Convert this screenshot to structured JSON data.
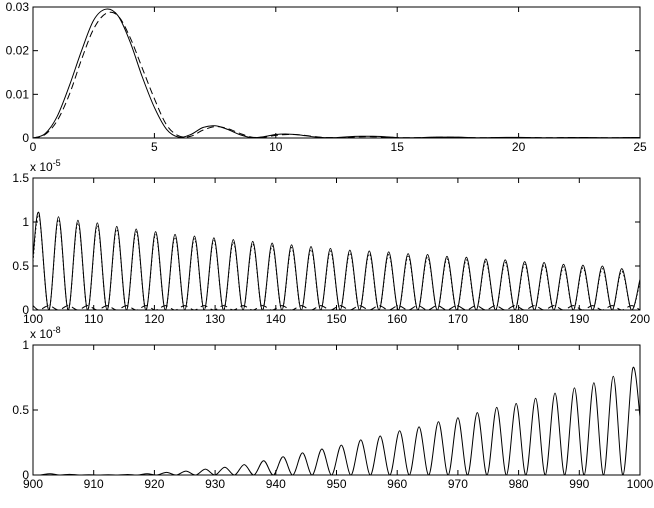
{
  "chart_data": [
    {
      "type": "line",
      "x": [
        0,
        0.5,
        1,
        1.5,
        2,
        2.5,
        3,
        3.5,
        4,
        4.5,
        5,
        5.5,
        6,
        6.5,
        7,
        7.5,
        8,
        8.5,
        9,
        9.5,
        10,
        10.5,
        11,
        11.5,
        12,
        12.5,
        13,
        13.5,
        14,
        14.5,
        15,
        15.5,
        16,
        16.5,
        17,
        17.5,
        18,
        18.5,
        19,
        19.5,
        20,
        20.5,
        21,
        21.5,
        22,
        22.5,
        23,
        23.5,
        24,
        24.5,
        25
      ],
      "series": [
        {
          "color": "#000000",
          "style": "solid",
          "values": [
            0,
            0.001,
            0.005,
            0.012,
            0.02,
            0.027,
            0.0295,
            0.028,
            0.022,
            0.014,
            0.007,
            0.002,
            0.0002,
            0.0008,
            0.0024,
            0.0028,
            0.002,
            0.0008,
            0.0001,
            0.0003,
            0.0008,
            0.0009,
            0.0007,
            0.0003,
            0.0001,
            0.0001,
            0.0003,
            0.0004,
            0.0004,
            0.0003,
            0.0001,
            5e-05,
            0.0001,
            0.0002,
            0.0002,
            0.0002,
            0.0001,
            5e-05,
            0.0001,
            0.00015,
            0.00015,
            0.0001,
            5e-05,
            5e-05,
            0.0001,
            0.0001,
            0.0001,
            5e-05,
            5e-05,
            0.0001,
            0.0001
          ]
        },
        {
          "color": "#000000",
          "style": "dashed",
          "values": [
            0,
            0.0008,
            0.004,
            0.01,
            0.018,
            0.025,
            0.0285,
            0.028,
            0.023,
            0.016,
            0.009,
            0.003,
            0.0005,
            0.0004,
            0.0018,
            0.0026,
            0.0022,
            0.0011,
            0.0002,
            0.0002,
            0.0006,
            0.0008,
            0.0007,
            0.0004,
            0.0001,
            0.0001,
            0.0002,
            0.0003,
            0.0003,
            0.0002,
            0.0001,
            5e-05,
            0.0001,
            0.00015,
            0.0002,
            0.00015,
            0.0001,
            5e-05,
            0.0001,
            0.0001,
            0.0001,
            0.0001,
            5e-05,
            5e-05,
            0.0001,
            0.0001,
            5e-05,
            5e-05,
            5e-05,
            0.0001,
            0.0001
          ]
        }
      ],
      "xlim": [
        0,
        25
      ],
      "xticks": [
        0,
        5,
        10,
        15,
        20,
        25
      ],
      "ylim": [
        0,
        0.03
      ],
      "yticks": [
        0,
        0.01,
        0.02,
        0.03
      ]
    },
    {
      "type": "line",
      "x": [
        100,
        101,
        102.6,
        104.2,
        105.8,
        107.4,
        109,
        110.6,
        112.2,
        113.8,
        115.4,
        117,
        118.6,
        120.2,
        121.8,
        123.4,
        125,
        126.6,
        128.2,
        129.8,
        131.4,
        133,
        134.6,
        136.2,
        137.8,
        139.4,
        141,
        142.6,
        144.2,
        145.8,
        147.4,
        149,
        150.6,
        152.2,
        153.8,
        155.4,
        157,
        158.6,
        160.2,
        161.8,
        163.4,
        165,
        166.6,
        168.2,
        169.8,
        171.4,
        173,
        174.6,
        176.2,
        177.8,
        179.4,
        181,
        182.6,
        184.2,
        185.8,
        187.4,
        189,
        190.6,
        192.2,
        193.8,
        195.4,
        197,
        198.6,
        200
      ],
      "series": [
        {
          "color": "#000000",
          "style": "solid",
          "values": [
            0.6,
            1.1,
            0,
            1.06,
            0,
            1.02,
            0,
            0.99,
            0,
            0.95,
            0,
            0.92,
            0,
            0.89,
            0,
            0.86,
            0,
            0.84,
            0,
            0.82,
            0,
            0.8,
            0,
            0.78,
            0,
            0.76,
            0,
            0.74,
            0,
            0.72,
            0,
            0.7,
            0,
            0.68,
            0,
            0.67,
            0,
            0.66,
            0,
            0.64,
            0,
            0.63,
            0,
            0.61,
            0,
            0.6,
            0,
            0.58,
            0,
            0.57,
            0,
            0.55,
            0,
            0.54,
            0,
            0.52,
            0,
            0.51,
            0,
            0.5,
            0,
            0.47,
            0,
            0.35
          ]
        },
        {
          "color": "#000000",
          "style": "dotted",
          "values": [
            0.55,
            1.07,
            0,
            1.03,
            0,
            0.99,
            0,
            0.96,
            0,
            0.92,
            0,
            0.89,
            0,
            0.86,
            0,
            0.83,
            0,
            0.81,
            0,
            0.79,
            0,
            0.77,
            0,
            0.75,
            0,
            0.73,
            0,
            0.71,
            0,
            0.69,
            0,
            0.67,
            0,
            0.65,
            0,
            0.64,
            0,
            0.63,
            0,
            0.61,
            0,
            0.6,
            0,
            0.58,
            0,
            0.57,
            0,
            0.55,
            0,
            0.54,
            0,
            0.52,
            0,
            0.51,
            0,
            0.49,
            0,
            0.48,
            0,
            0.47,
            0,
            0.44,
            0,
            0.32
          ]
        },
        {
          "color": "#000000",
          "style": "dashed",
          "values": [
            0.05,
            0,
            0.05,
            0,
            0.05,
            0,
            0.05,
            0,
            0.05,
            0,
            0.05,
            0,
            0.05,
            0,
            0.05,
            0,
            0.05,
            0,
            0.05,
            0,
            0.05,
            0,
            0.05,
            0,
            0.05,
            0,
            0.05,
            0,
            0.05,
            0,
            0.05,
            0,
            0.05,
            0,
            0.05,
            0,
            0.05,
            0,
            0.05,
            0,
            0.05,
            0,
            0.05,
            0,
            0.05,
            0,
            0.05,
            0,
            0.05,
            0,
            0.05,
            0,
            0.05,
            0,
            0.05,
            0,
            0.05,
            0,
            0.05,
            0,
            0.05,
            0,
            0.05,
            0
          ]
        }
      ],
      "xlim": [
        100,
        200
      ],
      "xticks": [
        100,
        110,
        120,
        130,
        140,
        150,
        160,
        170,
        180,
        190,
        200
      ],
      "ylim": [
        0,
        1.5
      ],
      "yticks": [
        0,
        0.5,
        1,
        1.5
      ],
      "y_multiplier": {
        "base": "x 10",
        "exponent": "-5"
      }
    },
    {
      "type": "line",
      "x": [
        900,
        901.2,
        902.8,
        904.4,
        906,
        907.6,
        909.2,
        910.8,
        912.4,
        914,
        915.6,
        917.2,
        918.8,
        920.4,
        922,
        923.6,
        925.2,
        926.8,
        928.4,
        930,
        931.6,
        933.2,
        934.8,
        936.4,
        938,
        939.6,
        941.2,
        942.8,
        944.4,
        946,
        947.6,
        949.2,
        950.8,
        952.4,
        954,
        955.6,
        957.2,
        958.8,
        960.4,
        962,
        963.6,
        965.2,
        966.8,
        968.4,
        970,
        971.6,
        973.2,
        974.8,
        976.4,
        978,
        979.6,
        981.2,
        982.8,
        984.4,
        986,
        987.6,
        989.2,
        990.8,
        992.4,
        994,
        995.6,
        997.2,
        998.8,
        1000
      ],
      "series": [
        {
          "color": "#000000",
          "style": "solid",
          "values": [
            0,
            0,
            0.01,
            0,
            0.005,
            0,
            0.002,
            0,
            0.002,
            0,
            0.004,
            0,
            0.01,
            0,
            0.02,
            0,
            0.03,
            0,
            0.045,
            0,
            0.06,
            0,
            0.08,
            0,
            0.11,
            0,
            0.14,
            0,
            0.17,
            0,
            0.2,
            0,
            0.23,
            0,
            0.27,
            0,
            0.3,
            0,
            0.34,
            0,
            0.37,
            0,
            0.41,
            0,
            0.44,
            0,
            0.48,
            0,
            0.52,
            0,
            0.55,
            0,
            0.59,
            0,
            0.63,
            0,
            0.67,
            0,
            0.71,
            0,
            0.76,
            0,
            0.82,
            0.45
          ]
        }
      ],
      "xlim": [
        900,
        1000
      ],
      "xticks": [
        900,
        910,
        920,
        930,
        940,
        950,
        960,
        970,
        980,
        990,
        1000
      ],
      "ylim": [
        0,
        1
      ],
      "yticks": [
        0,
        0.5,
        1
      ],
      "y_multiplier": {
        "base": "x 10",
        "exponent": "-8"
      }
    }
  ]
}
